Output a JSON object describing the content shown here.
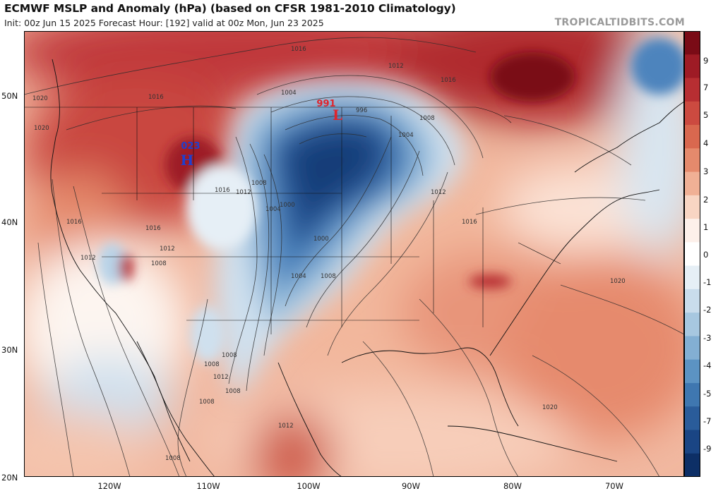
{
  "title": "ECMWF MSLP and Anomaly (hPa) (based on CFSR 1981-2010 Climatology)",
  "subtitle": "Init: 00z Jun 15 2025   Forecast Hour: [192]   valid at 00z Mon, Jun 23 2025",
  "credit": "TROPICALTIDBITS.COM",
  "lat_labels": [
    "50N",
    "40N",
    "30N",
    "20N"
  ],
  "lon_labels": [
    "120W",
    "110W",
    "100W",
    "90W",
    "80W",
    "70W"
  ],
  "colorbar": {
    "labels": [
      "9",
      "7",
      "5",
      "4",
      "3",
      "2",
      "1",
      "0",
      "-1",
      "-2",
      "-3",
      "-4",
      "-5",
      "-7",
      "-9"
    ],
    "colors": [
      "#7a0b16",
      "#9e1b25",
      "#b72e32",
      "#cc4a40",
      "#d9684f",
      "#e58a6c",
      "#f0b095",
      "#f8d5c3",
      "#fdf0ea",
      "#ffffff",
      "#e6eff6",
      "#c9dcec",
      "#a7c7e0",
      "#83afd3",
      "#5c93c3",
      "#3f77b0",
      "#2a5c9a",
      "#1a4584",
      "#0d2f66"
    ]
  },
  "pressure_centers": [
    {
      "type": "L",
      "value": "991",
      "color": "#e0242c"
    },
    {
      "type": "H",
      "value": "023",
      "color": "#1e3fd0"
    }
  ],
  "isobar_labels": [
    "1016",
    "1020",
    "1020",
    "1012",
    "1016",
    "1004",
    "996",
    "1008",
    "1004",
    "1016",
    "1012",
    "1016",
    "1012",
    "1008",
    "1004",
    "1000",
    "1000",
    "1016",
    "1012",
    "1016",
    "1008",
    "1004",
    "1008",
    "1012",
    "1016",
    "1020",
    "1008",
    "1008",
    "1012",
    "1008",
    "1008",
    "1012",
    "1008",
    "1020"
  ]
}
